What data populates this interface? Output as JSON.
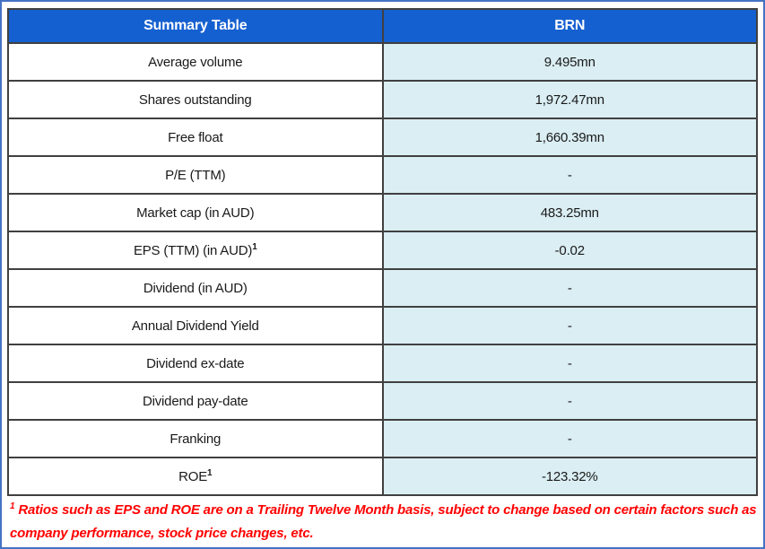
{
  "table": {
    "header": [
      "Summary Table",
      "BRN"
    ],
    "rows": [
      {
        "label": "Average volume",
        "value": "9.495mn"
      },
      {
        "label": "Shares outstanding",
        "value": "1,972.47mn"
      },
      {
        "label": "Free float",
        "value": "1,660.39mn"
      },
      {
        "label": "P/E (TTM)",
        "value": "-"
      },
      {
        "label": "Market cap (in AUD)",
        "value": "483.25mn"
      },
      {
        "label": "EPS (TTM) (in AUD)",
        "sup": "1",
        "value": "-0.02"
      },
      {
        "label": "Dividend (in AUD)",
        "value": "-"
      },
      {
        "label": "Annual Dividend Yield",
        "value": "-"
      },
      {
        "label": "Dividend ex-date",
        "value": "-"
      },
      {
        "label": "Dividend pay-date",
        "value": "-"
      },
      {
        "label": "Franking",
        "value": "-"
      },
      {
        "label": "ROE",
        "sup": "1",
        "value": "-123.32%"
      }
    ]
  },
  "footnote": {
    "sup": "1",
    "text": "Ratios such as EPS and ROE are on a Trailing Twelve Month basis, subject to change based on certain factors such as company performance, stock price changes, etc."
  },
  "colors": {
    "header_bg": "#1560D0",
    "header_text": "#FFFFFF",
    "value_cell_bg": "#DAEEF3",
    "label_cell_bg": "#FFFFFF",
    "grid_border": "#404040",
    "outer_frame": "#4472C4",
    "footnote_text": "#FF0000",
    "cell_text": "#1A1A1A"
  }
}
